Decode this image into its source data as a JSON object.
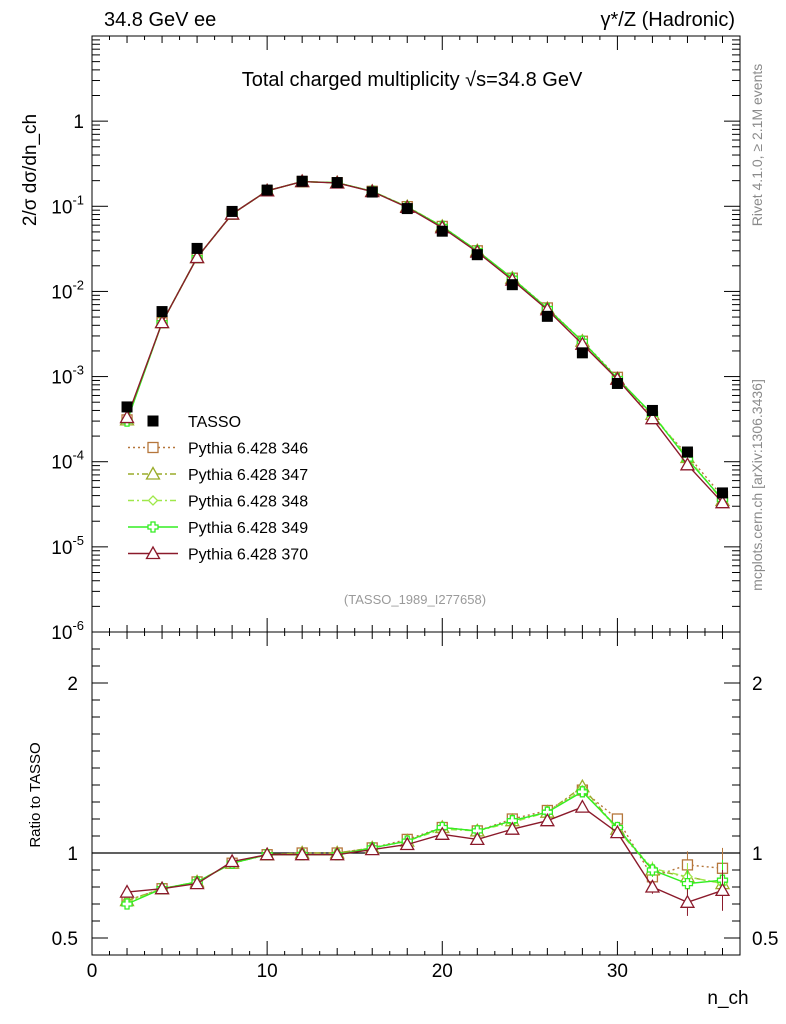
{
  "header": {
    "left": "34.8 GeV ee",
    "right": "γ*/Z (Hadronic)"
  },
  "side_labels": {
    "rivet": "Rivet 4.1.0, ≥ 2.1M events",
    "mcplots": "mcplots.cern.ch [arXiv:1306.3436]"
  },
  "chart_data": [
    {
      "type": "line",
      "title": "Total charged multiplicity √s=34.8 GeV",
      "ylabel": "2/σ  dσ/dn_ch",
      "yscale": "log",
      "ylim": [
        1e-06,
        10
      ],
      "xlim": [
        0,
        37
      ],
      "watermark": "(TASSO_1989_I277658)",
      "x": [
        2,
        4,
        6,
        8,
        10,
        12,
        14,
        16,
        18,
        20,
        22,
        24,
        26,
        28,
        30,
        32,
        34,
        36
      ],
      "ytick_labels": [
        "10^-6",
        "10^-5",
        "10^-4",
        "10^-3",
        "10^-2",
        "10^-1",
        "1"
      ],
      "legend": [
        {
          "name": "TASSO",
          "color": "#000000",
          "marker": "square"
        },
        {
          "name": "Pythia 6.428 346",
          "color": "#b5763b",
          "marker": "open-square",
          "dash": "dotted"
        },
        {
          "name": "Pythia 6.428 347",
          "color": "#9aac2a",
          "marker": "open-triangle",
          "dash": "dashdot"
        },
        {
          "name": "Pythia 6.428 348",
          "color": "#9fe84a",
          "marker": "diamond",
          "dash": "dashdot"
        },
        {
          "name": "Pythia 6.428 349",
          "color": "#33ee22",
          "marker": "cross",
          "dash": "solid"
        },
        {
          "name": "Pythia 6.428 370",
          "color": "#8b1a2b",
          "marker": "open-triangle",
          "dash": "solid"
        }
      ],
      "data_series": {
        "TASSO": [
          0.00044,
          0.0058,
          0.032,
          0.087,
          0.155,
          0.197,
          0.19,
          0.147,
          0.094,
          0.051,
          0.027,
          0.012,
          0.0051,
          0.0019,
          0.00083,
          0.0004,
          0.00013,
          4.3e-05
        ],
        "Pythia 6.428 346": [
          0.00031,
          0.0043,
          0.025,
          0.081,
          0.152,
          0.195,
          0.189,
          0.15,
          0.099,
          0.058,
          0.03,
          0.0143,
          0.0064,
          0.0026,
          0.00098,
          0.00034,
          0.00012,
          3.9e-05
        ],
        "Pythia 6.428 347": [
          0.00031,
          0.0043,
          0.025,
          0.081,
          0.152,
          0.195,
          0.189,
          0.15,
          0.099,
          0.058,
          0.03,
          0.0143,
          0.0063,
          0.0026,
          0.00094,
          0.00036,
          0.000112,
          3.5e-05
        ],
        "Pythia 6.428 348": [
          0.00031,
          0.0043,
          0.025,
          0.081,
          0.152,
          0.195,
          0.189,
          0.15,
          0.099,
          0.058,
          0.03,
          0.0142,
          0.0063,
          0.0026,
          0.00094,
          0.00036,
          0.000112,
          3.5e-05
        ],
        "Pythia 6.428 349": [
          0.0003,
          0.0043,
          0.025,
          0.081,
          0.152,
          0.195,
          0.189,
          0.15,
          0.098,
          0.058,
          0.03,
          0.0143,
          0.0063,
          0.0026,
          0.00095,
          0.00036,
          0.000107,
          3.6e-05
        ],
        "Pythia 6.428 370": [
          0.00033,
          0.0043,
          0.025,
          0.081,
          0.152,
          0.195,
          0.188,
          0.149,
          0.097,
          0.056,
          0.029,
          0.0136,
          0.0061,
          0.0024,
          0.00093,
          0.00032,
          9.2e-05,
          3.3e-05
        ]
      }
    },
    {
      "type": "line",
      "ylabel": "Ratio to TASSO",
      "xlabel": "n_ch",
      "ylim": [
        0.4,
        2.3
      ],
      "xlim": [
        0,
        37
      ],
      "ytick_labels": [
        "0.5",
        "1",
        "2"
      ],
      "xtick_labels": [
        "0",
        "10",
        "20",
        "30"
      ],
      "x": [
        2,
        4,
        6,
        8,
        10,
        12,
        14,
        16,
        18,
        20,
        22,
        24,
        26,
        28,
        30,
        32,
        34,
        36
      ],
      "ratio_series": {
        "Pythia 6.428 346": [
          0.72,
          0.79,
          0.83,
          0.94,
          0.99,
          1.0,
          1.0,
          1.03,
          1.08,
          1.15,
          1.13,
          1.2,
          1.25,
          1.37,
          1.2,
          0.86,
          0.93,
          0.91
        ],
        "Pythia 6.428 347": [
          0.72,
          0.79,
          0.83,
          0.94,
          0.99,
          1.0,
          1.0,
          1.03,
          1.07,
          1.15,
          1.13,
          1.19,
          1.24,
          1.39,
          1.14,
          0.9,
          0.86,
          0.82
        ],
        "Pythia 6.428 348": [
          0.71,
          0.79,
          0.83,
          0.94,
          0.99,
          0.99,
          0.99,
          1.03,
          1.07,
          1.14,
          1.13,
          1.18,
          1.24,
          1.37,
          1.14,
          0.91,
          0.86,
          0.82
        ],
        "Pythia 6.428 349": [
          0.7,
          0.79,
          0.83,
          0.94,
          0.99,
          0.99,
          0.99,
          1.03,
          1.07,
          1.15,
          1.13,
          1.19,
          1.24,
          1.36,
          1.15,
          0.9,
          0.82,
          0.84
        ],
        "Pythia 6.428 370": [
          0.77,
          0.79,
          0.82,
          0.95,
          0.99,
          0.99,
          0.99,
          1.02,
          1.05,
          1.11,
          1.08,
          1.14,
          1.19,
          1.27,
          1.12,
          0.8,
          0.71,
          0.78
        ]
      }
    }
  ]
}
